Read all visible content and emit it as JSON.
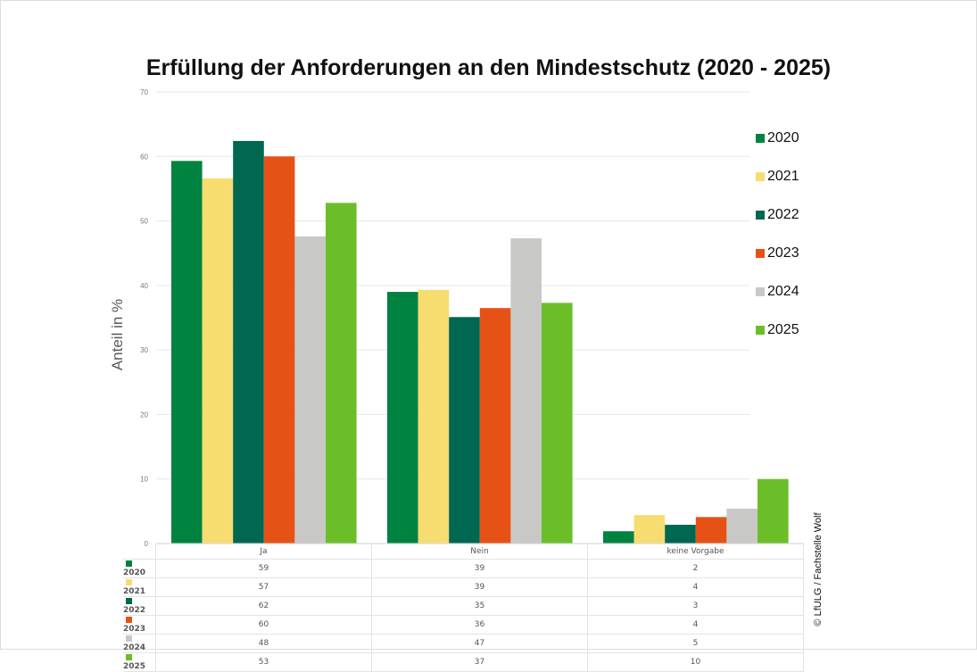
{
  "chart_data": {
    "type": "bar",
    "title": "Erfüllung der Anforderungen an den Mindestschutz (2020 - 2025)",
    "xlabel": "",
    "ylabel": "Anteil in %",
    "ylim": [
      0,
      70
    ],
    "yticks": [
      0,
      10,
      20,
      30,
      40,
      50,
      60,
      70
    ],
    "grid": true,
    "legend": "right",
    "categories": [
      "Ja",
      "Nein",
      "keine Vorgabe"
    ],
    "series": [
      {
        "name": "2020",
        "color": "#008241",
        "values": [
          59.3,
          39.0,
          1.9
        ],
        "table": [
          "59",
          "39",
          "2"
        ]
      },
      {
        "name": "2021",
        "color": "#F7DC6F",
        "values": [
          56.6,
          39.3,
          4.4
        ],
        "table": [
          "57",
          "39",
          "4"
        ]
      },
      {
        "name": "2022",
        "color": "#006750",
        "values": [
          62.4,
          35.1,
          2.9
        ],
        "table": [
          "62",
          "35",
          "3"
        ]
      },
      {
        "name": "2023",
        "color": "#E65216",
        "values": [
          60.0,
          36.5,
          4.1
        ],
        "table": [
          "60",
          "36",
          "4"
        ]
      },
      {
        "name": "2024",
        "color": "#C8C8C6",
        "values": [
          47.6,
          47.3,
          5.4
        ],
        "table": [
          "48",
          "47",
          "5"
        ]
      },
      {
        "name": "2025",
        "color": "#6CBE29",
        "values": [
          52.8,
          37.3,
          10.0
        ],
        "table": [
          "53",
          "37",
          "10"
        ]
      }
    ]
  },
  "copyright": "© LfULG / Fachstelle Wolf"
}
